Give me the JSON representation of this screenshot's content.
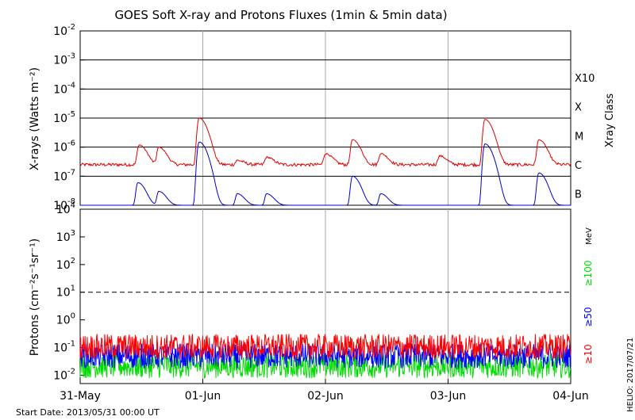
{
  "title": "GOES Soft X-ray and Protons Fluxes   (1min & 5min data)",
  "start_date": "Start Date: 2013/05/31 00:00 UT",
  "credit": "HELIO: 2017/07/21",
  "colors": {
    "xray_long": "#dd0000",
    "xray_short": "#0000cc",
    "p10": "#ff0000",
    "p50": "#0000ff",
    "p100": "#00dd00",
    "grid_day": "#aaaaaa"
  },
  "chart_data": [
    {
      "type": "line",
      "name": "xray-panel",
      "ylabel": "X-rays (Watts m⁻²)",
      "yscale": "log",
      "ylim": [
        1e-08,
        0.01
      ],
      "ytick_labels": [
        {
          "base": "10",
          "exp": "-2"
        },
        {
          "base": "10",
          "exp": "-3"
        },
        {
          "base": "10",
          "exp": "-4"
        },
        {
          "base": "10",
          "exp": "-5"
        },
        {
          "base": "10",
          "exp": "-6"
        },
        {
          "base": "10",
          "exp": "-7"
        },
        {
          "base": "10",
          "exp": "-8"
        }
      ],
      "xlim_days": [
        0,
        4
      ],
      "class_axis_label": "Xray Class",
      "class_labels": [
        "X10",
        "X",
        "M",
        "C",
        "B"
      ],
      "series": [
        {
          "color_key": "xray_long",
          "baseline": 2.5e-07,
          "flares": [
            {
              "day": 0.48,
              "peak": 1.2e-06
            },
            {
              "day": 0.64,
              "peak": 1e-06
            },
            {
              "day": 0.97,
              "peak": 1e-05
            },
            {
              "day": 1.28,
              "peak": 3.5e-07
            },
            {
              "day": 1.52,
              "peak": 4.5e-07
            },
            {
              "day": 2.0,
              "peak": 6e-07
            },
            {
              "day": 2.22,
              "peak": 1.8e-06
            },
            {
              "day": 2.45,
              "peak": 6e-07
            },
            {
              "day": 2.93,
              "peak": 5e-07
            },
            {
              "day": 3.3,
              "peak": 9e-06
            },
            {
              "day": 3.74,
              "peak": 1.8e-06
            }
          ]
        },
        {
          "color_key": "xray_short",
          "baseline": 1e-08,
          "flares": [
            {
              "day": 0.47,
              "peak": 6e-08
            },
            {
              "day": 0.64,
              "peak": 3e-08
            },
            {
              "day": 0.97,
              "peak": 1.5e-06
            },
            {
              "day": 1.28,
              "peak": 2.5e-08
            },
            {
              "day": 1.52,
              "peak": 2.5e-08
            },
            {
              "day": 2.22,
              "peak": 1e-07
            },
            {
              "day": 2.45,
              "peak": 2.5e-08
            },
            {
              "day": 3.3,
              "peak": 1.3e-06
            },
            {
              "day": 3.74,
              "peak": 1.3e-07
            }
          ]
        }
      ]
    },
    {
      "type": "line",
      "name": "proton-panel",
      "ylabel": "Protons (cm⁻²s⁻¹sr⁻¹)",
      "yscale": "log",
      "ylim": [
        0.005,
        10000
      ],
      "ytick_labels": [
        {
          "base": "10",
          "exp": "4"
        },
        {
          "base": "10",
          "exp": "3"
        },
        {
          "base": "10",
          "exp": "2"
        },
        {
          "base": "10",
          "exp": "1"
        },
        {
          "base": "10",
          "exp": "0"
        },
        {
          "base": "10",
          "exp": "-1"
        },
        {
          "base": "10",
          "exp": "-2"
        }
      ],
      "threshold": 10,
      "energy_unit": "MeV",
      "series": [
        {
          "name": "≥10",
          "color_key": "p10",
          "level": 0.11
        },
        {
          "name": "≥50",
          "color_key": "p50",
          "level": 0.05
        },
        {
          "name": "≥100",
          "color_key": "p100",
          "level": 0.022
        }
      ],
      "x_tick_labels": [
        "31-May",
        "01-Jun",
        "02-Jun",
        "03-Jun",
        "04-Jun"
      ]
    }
  ]
}
